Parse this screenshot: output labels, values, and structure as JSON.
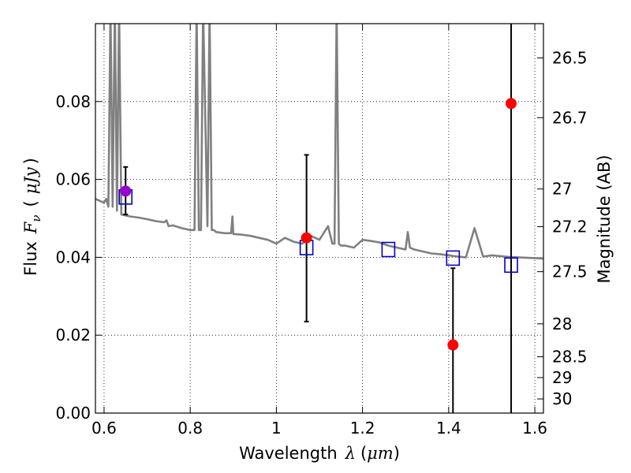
{
  "chart_data": {
    "type": "scatter",
    "title": "",
    "xlabel": "Wavelength",
    "xlabel_symbol": "λ",
    "xlabel_unit": "μm",
    "ylabel": "Flux",
    "ylabel_symbol": "F",
    "ylabel_subscript": "ν",
    "ylabel_unit": "μJy",
    "y2label": "Magnitude (AB)",
    "xlim": [
      0.58,
      1.62
    ],
    "ylim": [
      0.0,
      0.1
    ],
    "grid": true,
    "x_ticks": [
      0.6,
      0.8,
      1.0,
      1.2,
      1.4,
      1.6
    ],
    "x_tick_labels": [
      "0.6",
      "0.8",
      "1",
      "1.2",
      "1.4",
      "1.6"
    ],
    "y_ticks": [
      0.0,
      0.02,
      0.04,
      0.06,
      0.08
    ],
    "y_tick_labels": [
      "0.00",
      "0.02",
      "0.04",
      "0.06",
      "0.08"
    ],
    "y2_ticks": [
      "26.5",
      "26.7",
      "27",
      "27.2",
      "27.5",
      "28",
      "28.5",
      "29",
      "30"
    ],
    "colors": {
      "model_spectrum": "#808080",
      "observed": "#ff0000",
      "model_photometry": "#0000cc",
      "highlight": "#9900cc",
      "errorbar": "#000000"
    },
    "model_spectrum": {
      "x": [
        0.58,
        0.6,
        0.605,
        0.61,
        0.615,
        0.62,
        0.625,
        0.63,
        0.635,
        0.64,
        0.66,
        0.68,
        0.7,
        0.72,
        0.74,
        0.745,
        0.75,
        0.76,
        0.78,
        0.8,
        0.81,
        0.815,
        0.82,
        0.825,
        0.83,
        0.84,
        0.845,
        0.85,
        0.855,
        0.86,
        0.88,
        0.895,
        0.898,
        0.9,
        0.92,
        0.94,
        0.96,
        0.98,
        1.0,
        1.02,
        1.04,
        1.06,
        1.08,
        1.1,
        1.12,
        1.13,
        1.135,
        1.14,
        1.145,
        1.15,
        1.16,
        1.18,
        1.2,
        1.22,
        1.24,
        1.26,
        1.28,
        1.3,
        1.305,
        1.31,
        1.32,
        1.34,
        1.36,
        1.38,
        1.4,
        1.42,
        1.44,
        1.46,
        1.48,
        1.5,
        1.52,
        1.54,
        1.56,
        1.58,
        1.6,
        1.62
      ],
      "y": [
        0.055,
        0.054,
        0.055,
        0.053,
        0.1,
        0.053,
        0.1,
        0.052,
        0.1,
        0.051,
        0.0505,
        0.0502,
        0.0498,
        0.0493,
        0.049,
        0.0495,
        0.048,
        0.0482,
        0.0475,
        0.047,
        0.047,
        0.1,
        0.047,
        0.047,
        0.1,
        0.048,
        0.1,
        0.047,
        0.047,
        0.0465,
        0.0462,
        0.0462,
        0.0505,
        0.046,
        0.0458,
        0.0455,
        0.045,
        0.0445,
        0.0435,
        0.045,
        0.044,
        0.0435,
        0.0455,
        0.0445,
        0.048,
        0.0435,
        0.0435,
        0.1,
        0.0435,
        0.043,
        0.043,
        0.0425,
        0.0445,
        0.0442,
        0.0438,
        0.043,
        0.0425,
        0.042,
        0.0465,
        0.0425,
        0.042,
        0.0415,
        0.041,
        0.0408,
        0.0405,
        0.0402,
        0.04,
        0.0475,
        0.0402,
        0.0405,
        0.0403,
        0.0401,
        0.04,
        0.0399,
        0.0398,
        0.0397
      ]
    },
    "observed_points": [
      {
        "x": 0.65,
        "y": 0.057,
        "err_low": 0.051,
        "err_high": 0.0632
      },
      {
        "x": 1.07,
        "y": 0.045,
        "err_low": 0.0235,
        "err_high": 0.0663
      },
      {
        "x": 1.41,
        "y": 0.0175,
        "err_low": 0.0,
        "err_high": 0.0372
      },
      {
        "x": 1.545,
        "y": 0.0795,
        "err_low": 0.0,
        "err_high": 0.1
      }
    ],
    "model_photometry": [
      {
        "x": 0.65,
        "y": 0.0555
      },
      {
        "x": 1.07,
        "y": 0.0425
      },
      {
        "x": 1.26,
        "y": 0.042
      },
      {
        "x": 1.41,
        "y": 0.0398
      },
      {
        "x": 1.545,
        "y": 0.038
      }
    ]
  }
}
